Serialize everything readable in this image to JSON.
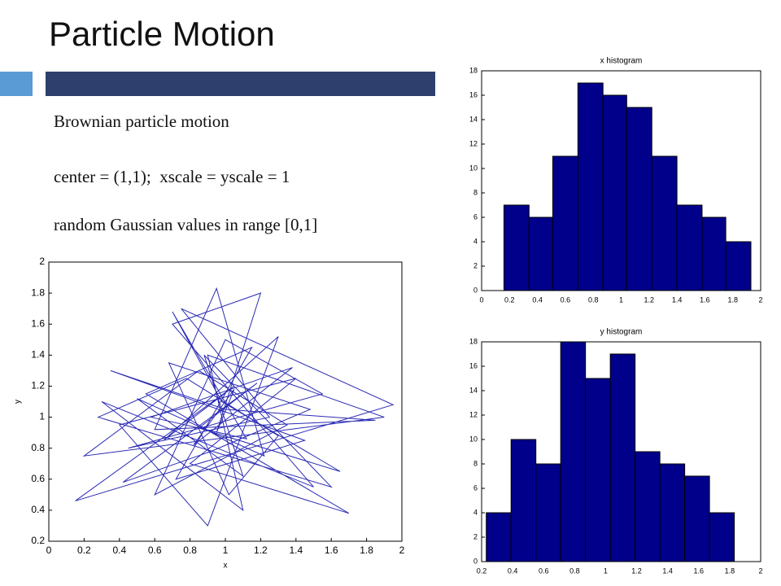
{
  "header": {
    "title": "Particle Motion"
  },
  "body": {
    "lines": [
      "Brownian particle motion",
      "center = (1,1);  xscale = yscale = 1",
      "random Gaussian values in range [0,1]"
    ]
  },
  "chart_data": [
    {
      "type": "line",
      "x_label": "x",
      "y_label": "y",
      "color": "#2b2bb5",
      "x": [
        0.95,
        1.2,
        0.7,
        1.5,
        0.3,
        1.1,
        0.9,
        1.9,
        0.2,
        0.85,
        1.35,
        0.6,
        1.0,
        1.55,
        0.45,
        1.25,
        0.75,
        1.95,
        0.15,
        1.05,
        0.65,
        1.3,
        0.9,
        0.4,
        1.4,
        0.8,
        1.7,
        0.55,
        1.15,
        0.72,
        1.45,
        0.35,
        1.0,
        1.85,
        0.6,
        0.95,
        1.22,
        0.5,
        1.1,
        0.88,
        1.6,
        0.28,
        0.78,
        1.3,
        1.02,
        0.68,
        1.48,
        0.92,
        0.42,
        1.18,
        0.85,
        1.65,
        0.98,
        0.7,
        1.12,
        0.58,
        1.38,
        0.82,
        1.05,
        0.95
      ],
      "values": [
        0.9,
        1.8,
        1.6,
        0.55,
        1.1,
        0.4,
        1.4,
        1.0,
        0.75,
        1.3,
        0.95,
        0.5,
        1.5,
        1.15,
        0.8,
        1.0,
        1.7,
        1.08,
        0.46,
        1.2,
        0.85,
        1.52,
        0.3,
        0.95,
        1.25,
        0.7,
        0.38,
        1.15,
        1.45,
        0.6,
        0.85,
        1.3,
        1.05,
        0.98,
        0.92,
        1.83,
        0.75,
        1.12,
        0.62,
        1.4,
        0.55,
        1.0,
        1.25,
        0.88,
        0.5,
        1.35,
        1.05,
        0.78,
        0.58,
        1.22,
        0.93,
        0.65,
        1.1,
        1.68,
        0.86,
        1.0,
        1.32,
        0.82,
        1.18,
        0.9
      ],
      "xlim": [
        0,
        2
      ],
      "xticks": [
        0,
        0.2,
        0.4,
        0.6,
        0.8,
        1,
        1.2,
        1.4,
        1.6,
        1.8,
        2
      ],
      "ylim": [
        0.2,
        2
      ],
      "yticks": [
        0.2,
        0.4,
        0.6,
        0.8,
        1,
        1.2,
        1.4,
        1.6,
        1.8,
        2
      ]
    },
    {
      "type": "histogram",
      "title": "x histogram",
      "color": "#00008b",
      "bins": [
        0.16,
        0.34,
        0.51,
        0.69,
        0.87,
        1.04,
        1.22,
        1.4,
        1.58,
        1.75,
        1.93
      ],
      "values": [
        7,
        6,
        11,
        17,
        16,
        15,
        11,
        7,
        6,
        4
      ],
      "xlim": [
        0,
        2
      ],
      "xticks": [
        0,
        0.2,
        0.4,
        0.6,
        0.8,
        1,
        1.2,
        1.4,
        1.6,
        1.8,
        2
      ],
      "ylim": [
        0,
        18
      ],
      "yticks": [
        0,
        2,
        4,
        6,
        8,
        10,
        12,
        14,
        16,
        18
      ]
    },
    {
      "type": "histogram",
      "title": "y histogram",
      "color": "#00008b",
      "bins": [
        0.23,
        0.39,
        0.55,
        0.71,
        0.87,
        1.03,
        1.19,
        1.35,
        1.51,
        1.67,
        1.83
      ],
      "values": [
        4,
        10,
        8,
        18,
        15,
        17,
        9,
        8,
        7,
        4
      ],
      "xlim": [
        0.2,
        2
      ],
      "xticks": [
        0.2,
        0.4,
        0.6,
        0.8,
        1,
        1.2,
        1.4,
        1.6,
        1.8,
        2
      ],
      "ylim": [
        0,
        18
      ],
      "yticks": [
        0,
        2,
        4,
        6,
        8,
        10,
        12,
        14,
        16,
        18
      ]
    }
  ]
}
